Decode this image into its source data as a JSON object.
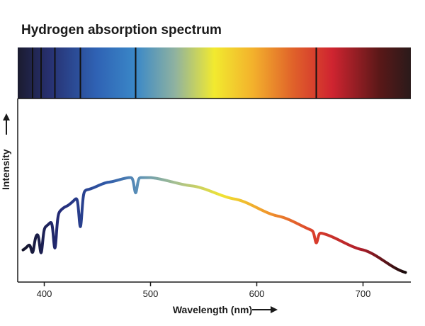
{
  "chart_data": {
    "type": "line",
    "title": "Hydrogen absorption spectrum",
    "xlabel": "Wavelength (nm)",
    "ylabel": "Intensity",
    "xlim": [
      375,
      745
    ],
    "xticks": [
      400,
      500,
      600,
      700
    ],
    "absorption_lines_nm": [
      389,
      397,
      410,
      434,
      486,
      656
    ],
    "series": [
      {
        "values": [
          {
            "x": 380,
            "y": 0.16
          },
          {
            "x": 400,
            "y": 0.28
          },
          {
            "x": 420,
            "y": 0.39
          },
          {
            "x": 440,
            "y": 0.48
          },
          {
            "x": 460,
            "y": 0.52
          },
          {
            "x": 480,
            "y": 0.545
          },
          {
            "x": 500,
            "y": 0.545
          },
          {
            "x": 540,
            "y": 0.5
          },
          {
            "x": 580,
            "y": 0.43
          },
          {
            "x": 620,
            "y": 0.34
          },
          {
            "x": 660,
            "y": 0.25
          },
          {
            "x": 700,
            "y": 0.16
          },
          {
            "x": 740,
            "y": 0.04
          }
        ]
      }
    ],
    "grid": false,
    "legend": "none"
  },
  "spectrum_colors": [
    "#1b1b2f",
    "#2a3a8a",
    "#2f6fbf",
    "#6aa3b8",
    "#f2ea2f",
    "#f3a12c",
    "#d84a2a",
    "#c4202f",
    "#3a1414",
    "#2a1a1a"
  ]
}
